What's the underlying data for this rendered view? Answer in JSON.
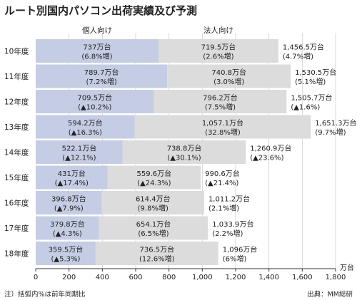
{
  "chart_data": {
    "type": "bar",
    "stacked": true,
    "orientation": "horizontal",
    "title": "ルート別国内パソコン出荷実績及び予測",
    "series_headers": [
      "個人向け",
      "法人向け"
    ],
    "categories": [
      "10年度",
      "11年度",
      "12年度",
      "13年度",
      "14年度",
      "15年度",
      "16年度",
      "17年度",
      "18年度"
    ],
    "series": [
      {
        "name": "個人向け",
        "color": "#c5cde4",
        "values": [
          737,
          789.7,
          709.5,
          594.2,
          522.1,
          431,
          396.8,
          379.8,
          359.5
        ],
        "labels": [
          "737万台",
          "789.7万台",
          "709.5万台",
          "594.2万台",
          "522.1万台",
          "431万台",
          "396.8万台",
          "379.8万台",
          "359.5万台"
        ],
        "sublabels": [
          "(6.8%増)",
          "(7.2%増)",
          "(▲10.2%)",
          "(▲16.3%)",
          "(▲12.1%)",
          "(▲17.4%)",
          "(▲7.9%)",
          "(▲4.3%)",
          "(▲5.3%)"
        ]
      },
      {
        "name": "法人向け",
        "color": "#dcdcdc",
        "values": [
          719.5,
          740.8,
          796.2,
          1057.1,
          738.8,
          559.6,
          614.4,
          654.1,
          736.5
        ],
        "labels": [
          "719.5万台",
          "740.8万台",
          "796.2万台",
          "1,057.1万台",
          "738.8万台",
          "559.6万台",
          "614.4万台",
          "654.1万台",
          "736.5万台"
        ],
        "sublabels": [
          "(2.6%増)",
          "(3.0%増)",
          "(7.5%増)",
          "(32.8%増)",
          "(▲30.1%)",
          "(▲24.3%)",
          "(9.8%増)",
          "(6.5%増)",
          "(12.6%増)"
        ]
      }
    ],
    "totals": {
      "values": [
        1456.5,
        1530.5,
        1505.7,
        1651.3,
        1260.9,
        990.6,
        1011.2,
        1033.9,
        1096
      ],
      "labels": [
        "1,456.5万台",
        "1,530.5万台",
        "1,505.7万台",
        "1,651.3万台",
        "1,260.9万台",
        "990.6万台",
        "1,011.2万台",
        "1,033.9万台",
        "1,096万台"
      ],
      "sublabels": [
        "(4.7%増)",
        "(5.1%増)",
        "(▲1.6%)",
        "(9.7%増)",
        "(▲23.6%)",
        "(▲21.4%)",
        "(2.1%増)",
        "(2.2%増)",
        "(6%増)"
      ]
    },
    "xlim": [
      0,
      1800
    ],
    "xticks": [
      0,
      200,
      400,
      600,
      800,
      1000,
      1200,
      1400,
      1600,
      1800
    ],
    "xtick_labels": [
      "0",
      "200",
      "400",
      "600",
      "800",
      "1,000",
      "1,200",
      "1,400",
      "1,600",
      "1,800"
    ],
    "xunit": "万台",
    "grid": true,
    "note": "注）括弧内%は前年同期比",
    "source": "出典：MM総研"
  }
}
